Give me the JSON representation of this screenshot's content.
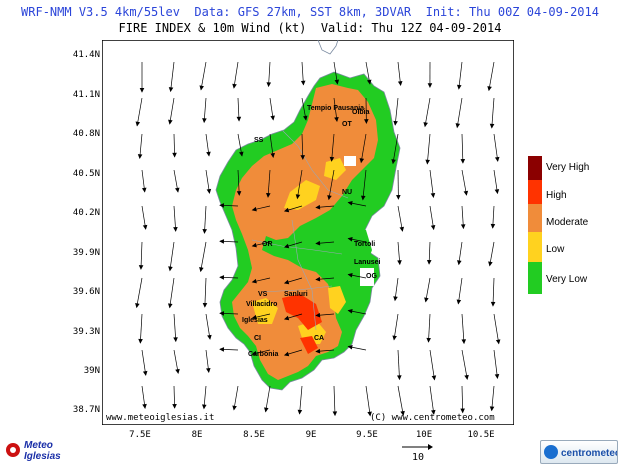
{
  "header": {
    "line1": "WRF-NMM V3.5 4km/55lev  Data: GFS 27km, SST 8km, 3DVAR  Init: Thu 00Z 04-09-2014",
    "line2": "FIRE INDEX & 10m Wind (kt)  Valid: Thu 12Z 04-09-2014"
  },
  "axes": {
    "lat_labels": [
      "41.4N",
      "41.1N",
      "40.8N",
      "40.5N",
      "40.2N",
      "39.9N",
      "39.6N",
      "39.3N",
      "39N",
      "38.7N"
    ],
    "lon_labels": [
      "7.5E",
      "8E",
      "8.5E",
      "9E",
      "9.5E",
      "10E",
      "10.5E"
    ]
  },
  "legend": {
    "items": [
      {
        "label": "Very High",
        "color": "#8b0000"
      },
      {
        "label": "High",
        "color": "#ff3300"
      },
      {
        "label": "Moderate",
        "color": "#f08c3a"
      },
      {
        "label": "Low",
        "color": "#ffd21f"
      },
      {
        "label": "Very Low",
        "color": "#22cc22"
      }
    ]
  },
  "places": [
    {
      "name": "Olbia"
    },
    {
      "name": "Tempio Pausania"
    },
    {
      "name": "OT"
    },
    {
      "name": "SS"
    },
    {
      "name": "NU"
    },
    {
      "name": "OR"
    },
    {
      "name": "Tortoli"
    },
    {
      "name": "Lanusei"
    },
    {
      "name": "OG"
    },
    {
      "name": "VS"
    },
    {
      "name": "Sanluri"
    },
    {
      "name": "Villacidro"
    },
    {
      "name": "Iglesias"
    },
    {
      "name": "CI"
    },
    {
      "name": "Carbonia"
    },
    {
      "name": "CA"
    }
  ],
  "credits": {
    "left": "www.meteoiglesias.it",
    "right": "(C) www.centrometeo.com",
    "logo_left_line1": "Meteo",
    "logo_left_line2": "Iglesias",
    "logo_right": "centrometeo"
  },
  "wind_scale_label": "10"
}
